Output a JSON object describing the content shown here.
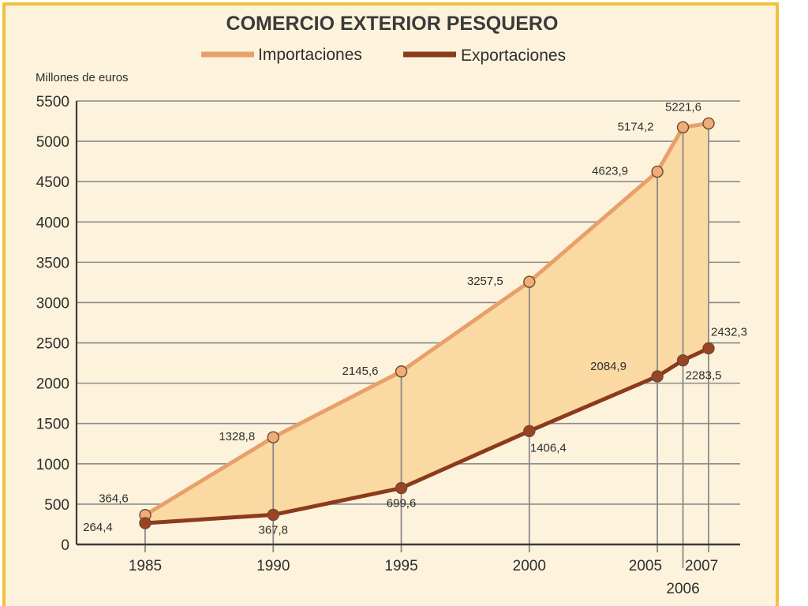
{
  "colors": {
    "frame": "#f2c13c",
    "background": "#fdf3dc",
    "area": "#fbd9a3",
    "grid": "#8a8a8a",
    "imports": "#e8a06b",
    "exports": "#8c3a1c",
    "imports_marker": "#f1ad78",
    "exports_marker": "#9b4424"
  },
  "chart_data": {
    "type": "line",
    "title": "COMERCIO EXTERIOR PESQUERO",
    "ylabel": "Millones de euros",
    "xlabel": "",
    "x": [
      1985,
      1990,
      1995,
      2000,
      2005,
      2006,
      2007
    ],
    "x_tick_labels": [
      "1985",
      "1990",
      "1995",
      "2000",
      "2005",
      "2006",
      "2007"
    ],
    "ylim": [
      0,
      5500
    ],
    "y_ticks": [
      0,
      500,
      1000,
      1500,
      2000,
      2500,
      3000,
      3500,
      4000,
      4500,
      5000,
      5500
    ],
    "y_tick_labels": [
      "0",
      "500",
      "1000",
      "1500",
      "2000",
      "2500",
      "3000",
      "3500",
      "4000",
      "4500",
      "5000",
      "5500"
    ],
    "grid": true,
    "legend_position": "top-center",
    "area_between_series": true,
    "series": [
      {
        "name": "Importaciones",
        "values": [
          364.6,
          1328.8,
          2145.6,
          3257.5,
          4623.9,
          5174.2,
          5221.6
        ],
        "labels": [
          "364,6",
          "1328,8",
          "2145,6",
          "3257,5",
          "4623,9",
          "5174,2",
          "5221,6"
        ]
      },
      {
        "name": "Exportaciones",
        "values": [
          264.4,
          367.8,
          699.6,
          1406.4,
          2084.9,
          2283.5,
          2432.3
        ],
        "labels": [
          "264,4",
          "367,8",
          "699,6",
          "1406,4",
          "2084,9",
          "2283,5",
          "2432,3"
        ]
      }
    ]
  }
}
